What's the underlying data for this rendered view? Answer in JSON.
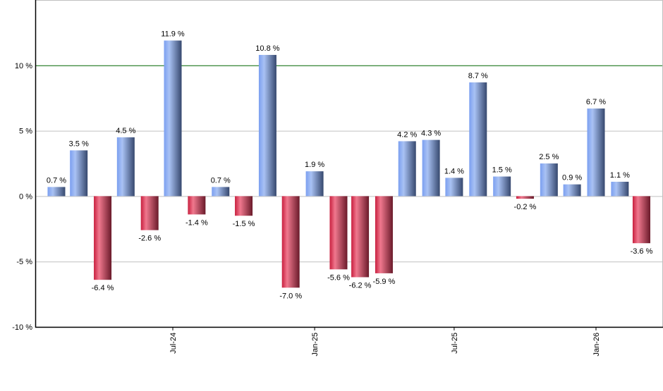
{
  "chart_data": {
    "type": "bar",
    "categories": [
      "2024-02",
      "2024-03",
      "2024-04",
      "2024-05",
      "2024-06",
      "2024-07",
      "2024-08",
      "2024-09",
      "2024-10",
      "2024-11",
      "2024-12",
      "2025-01",
      "2025-02",
      "2025-03",
      "2025-04",
      "2025-05",
      "2025-06",
      "2025-07",
      "2025-08",
      "2025-09",
      "2025-10",
      "2025-11",
      "2025-12",
      "2026-01",
      "2026-02",
      "2026-03"
    ],
    "values": [
      0.7,
      3.5,
      -6.4,
      4.5,
      -2.6,
      11.9,
      -1.4,
      0.7,
      -1.5,
      10.8,
      -7.0,
      1.9,
      -5.6,
      -6.2,
      -5.9,
      4.2,
      4.3,
      1.4,
      8.7,
      1.5,
      -0.2,
      2.5,
      0.9,
      6.7,
      1.1,
      -3.6
    ],
    "data_labels": [
      "0.7 %",
      "3.5 %",
      "-6.4 %",
      "4.5 %",
      "-2.6 %",
      "11.9 %",
      "-1.4 %",
      "0.7 %",
      "-1.5 %",
      "10.8 %",
      "-7.0 %",
      "1.9 %",
      "-5.6 %",
      "-6.2 %",
      "-5.9 %",
      "4.2 %",
      "4.3 %",
      "1.4 %",
      "8.7 %",
      "1.5 %",
      "-0.2 %",
      "2.5 %",
      "0.9 %",
      "6.7 %",
      "1.1 %",
      "-3.6 %"
    ],
    "ylim": [
      -10,
      15
    ],
    "y_ticks": [
      -10,
      -5,
      0,
      5,
      10
    ],
    "y_tick_labels": [
      "-10 %",
      "-5 %",
      "0 %",
      "5 %",
      "10 %"
    ],
    "x_ticks": [
      "2024-07-01",
      "2025-01-01",
      "2025-07-01",
      "2026-01-01"
    ],
    "x_tick_labels": [
      "Jul-24",
      "Jan-25",
      "Jul-25",
      "Jan-26"
    ],
    "grid": true,
    "highlight_line": 10,
    "colors": {
      "positive": "#7a9be0",
      "negative": "#d2405e",
      "highlight_line": "#006600",
      "grid": "#c0c0c0"
    }
  }
}
